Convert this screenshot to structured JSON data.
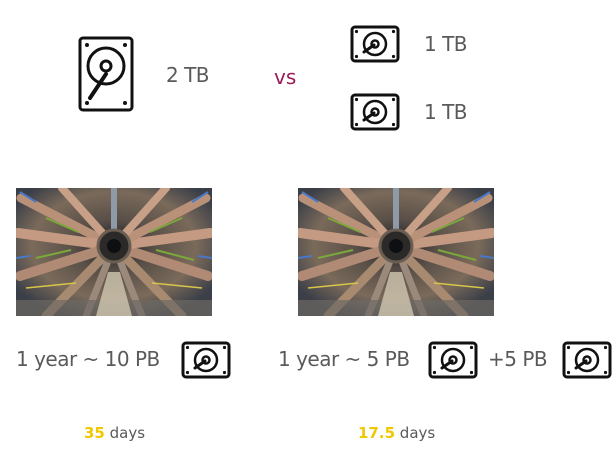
{
  "top": {
    "single_drive_label": "2 TB",
    "vs_label": "vs",
    "drive_a_label": "1 TB",
    "drive_b_label": "1 TB"
  },
  "left": {
    "caption": "1 year ~ 10 PB",
    "days_value": "35",
    "days_unit": "days"
  },
  "right": {
    "caption": "1 year ~ 5 PB",
    "caption_extra": "+5 PB",
    "days_value": "17.5",
    "days_unit": "days"
  },
  "colors": {
    "text": "#5a5a5a",
    "vs": "#9b1b5a",
    "highlight": "#f0c800"
  },
  "icons": [
    "hard-drive-icon",
    "detector-photo"
  ]
}
